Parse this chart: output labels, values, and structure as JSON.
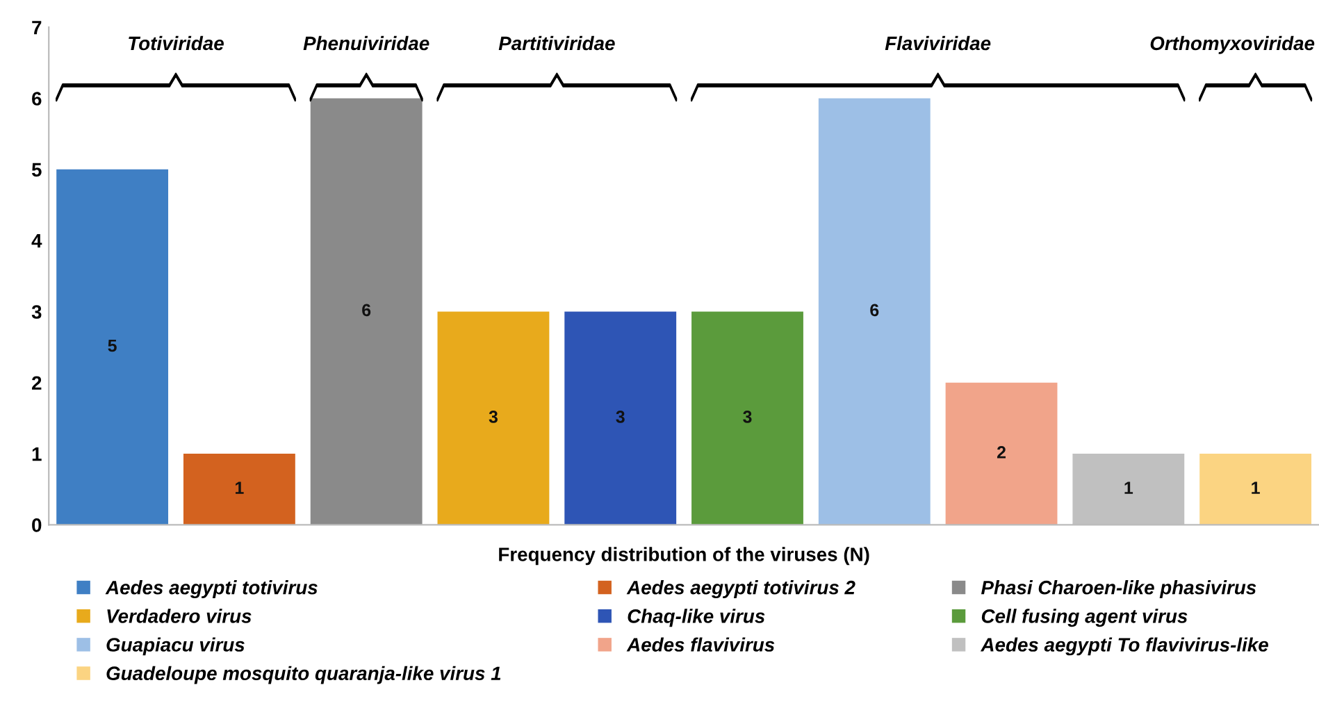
{
  "chart_data": {
    "type": "bar",
    "categories": [
      null,
      null,
      null,
      null,
      null,
      null,
      null,
      null,
      null,
      null
    ],
    "xlabel": "Frequency distribution of the viruses (N)",
    "series": [
      {
        "name": "Aedes aegypti totivirus",
        "color": "#3f7fc4",
        "values": [
          5,
          null,
          null,
          null,
          null,
          null,
          null,
          null,
          null,
          null
        ]
      },
      {
        "name": "Aedes aegypti totivirus 2",
        "color": "#d3621f",
        "values": [
          null,
          1,
          null,
          null,
          null,
          null,
          null,
          null,
          null,
          null
        ]
      },
      {
        "name": "Phasi Charoen-like phasivirus",
        "color": "#8a8a8a",
        "values": [
          null,
          null,
          6,
          null,
          null,
          null,
          null,
          null,
          null,
          null
        ]
      },
      {
        "name": "Verdadero virus",
        "color": "#e8aa1c",
        "values": [
          null,
          null,
          null,
          3,
          null,
          null,
          null,
          null,
          null,
          null
        ]
      },
      {
        "name": "Chaq-like virus",
        "color": "#2e55b5",
        "values": [
          null,
          null,
          null,
          null,
          3,
          null,
          null,
          null,
          null,
          null
        ]
      },
      {
        "name": "Cell fusing agent virus",
        "color": "#5b9b3c",
        "values": [
          null,
          null,
          null,
          null,
          null,
          3,
          null,
          null,
          null,
          null
        ]
      },
      {
        "name": "Guapiacu virus",
        "color": "#9dbfe6",
        "values": [
          null,
          null,
          null,
          null,
          null,
          null,
          6,
          null,
          null,
          null
        ]
      },
      {
        "name": "Aedes flavivirus",
        "color": "#f1a48a",
        "values": [
          null,
          null,
          null,
          null,
          null,
          null,
          null,
          2,
          null,
          null
        ]
      },
      {
        "name": "Aedes aegypti To flavivirus-like",
        "color": "#c0c0c0",
        "values": [
          null,
          null,
          null,
          null,
          null,
          null,
          null,
          null,
          1,
          null
        ]
      },
      {
        "name": "Guadeloupe mosquito quaranja-like virus 1",
        "color": "#fbd482",
        "values": [
          null,
          null,
          null,
          null,
          null,
          null,
          null,
          null,
          null,
          1
        ]
      }
    ],
    "annotations": [
      "Totiviridae",
      "Phenuiviridae",
      "Partitiviridae",
      "Flaviviridae",
      "Orthomyxoviridae"
    ],
    "ylim": [
      0,
      7
    ],
    "yticks": [
      0,
      1,
      2,
      3,
      4,
      5,
      6,
      7
    ],
    "stacked": true,
    "data_labels": true,
    "legend": "bottom",
    "grid": false
  }
}
